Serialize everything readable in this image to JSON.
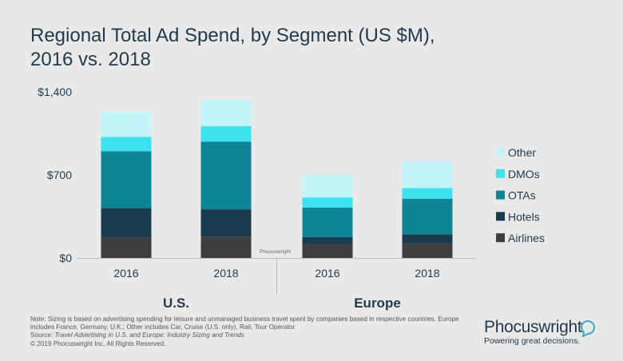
{
  "title_line1": "Regional Total Ad Spend, by Segment (US $M),",
  "title_line2": "2016 vs. 2018",
  "chart_data": {
    "type": "bar",
    "stacked": true,
    "title": "Regional Total Ad Spend, by Segment (US $M), 2016 vs. 2018",
    "groups": [
      {
        "name": "U.S.",
        "categories": [
          "2016",
          "2018"
        ]
      },
      {
        "name": "Europe",
        "categories": [
          "2016",
          "2018"
        ]
      }
    ],
    "categories": [
      "2016",
      "2018",
      "2016",
      "2018"
    ],
    "series": [
      {
        "name": "Airlines",
        "color": "#3f3f3f",
        "values": [
          170,
          180,
          115,
          125
        ]
      },
      {
        "name": "Hotels",
        "color": "#1a3a4e",
        "values": [
          250,
          230,
          60,
          75
        ]
      },
      {
        "name": "OTAs",
        "color": "#0e8494",
        "values": [
          480,
          570,
          250,
          300
        ]
      },
      {
        "name": "DMOs",
        "color": "#3de2ef",
        "values": [
          120,
          130,
          85,
          90
        ]
      },
      {
        "name": "Other",
        "color": "#c2f4f8",
        "values": [
          210,
          225,
          195,
          225
        ]
      }
    ],
    "yticks": [
      "$0",
      "$700",
      "$1,400"
    ],
    "ytick_values": [
      0,
      700,
      1400
    ],
    "ylim": [
      0,
      1400
    ],
    "legend_position": "right"
  },
  "watermark": "Phocuswright",
  "note_text": "Note: Sizing is based on advertising spending for leisure and unmanaged business travel spent by companies based in respective countries. Europe includes France, Germany, U.K.; Other includes Car, Cruise (U.S. only), Rail, Tour Operator.",
  "source_label": "Source:",
  "source_text": "Travel Advertising in U.S. and Europe: Industry Sizing and Trends",
  "copyright": "© 2019  Phocuswright Inc. All Rights Reserved.",
  "brand_name": "Phocuswright",
  "brand_tagline": "Powering great decisions."
}
